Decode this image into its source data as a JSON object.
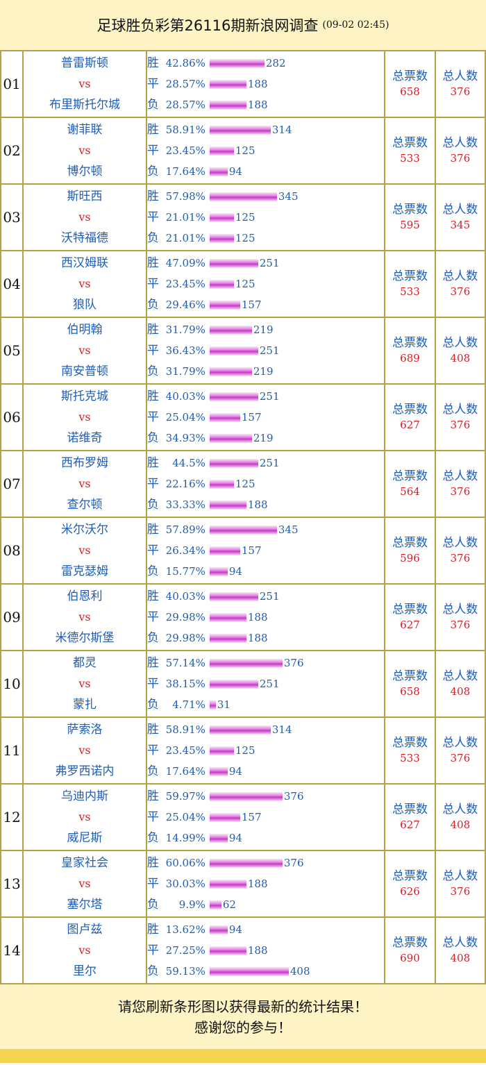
{
  "header": {
    "title": "足球胜负彩第26116期新浪网调查",
    "timestamp": "(09-02 02:45)"
  },
  "labels": {
    "vs": "vs",
    "win": "胜",
    "draw": "平",
    "lose": "负",
    "total_votes": "总票数",
    "total_people": "总人数"
  },
  "matches": [
    {
      "num": "01",
      "home": "普雷斯顿",
      "away": "布里斯托尔城",
      "win": {
        "pct": "42.86%",
        "count": 282
      },
      "draw": {
        "pct": "28.57%",
        "count": 188
      },
      "lose": {
        "pct": "28.57%",
        "count": 188
      },
      "total_votes": "658",
      "total_people": "376"
    },
    {
      "num": "02",
      "home": "谢菲联",
      "away": "博尔顿",
      "win": {
        "pct": "58.91%",
        "count": 314
      },
      "draw": {
        "pct": "23.45%",
        "count": 125
      },
      "lose": {
        "pct": "17.64%",
        "count": 94
      },
      "total_votes": "533",
      "total_people": "376"
    },
    {
      "num": "03",
      "home": "斯旺西",
      "away": "沃特福德",
      "win": {
        "pct": "57.98%",
        "count": 345
      },
      "draw": {
        "pct": "21.01%",
        "count": 125
      },
      "lose": {
        "pct": "21.01%",
        "count": 125
      },
      "total_votes": "595",
      "total_people": "345"
    },
    {
      "num": "04",
      "home": "西汉姆联",
      "away": "狼队",
      "win": {
        "pct": "47.09%",
        "count": 251
      },
      "draw": {
        "pct": "23.45%",
        "count": 125
      },
      "lose": {
        "pct": "29.46%",
        "count": 157
      },
      "total_votes": "533",
      "total_people": "376"
    },
    {
      "num": "05",
      "home": "伯明翰",
      "away": "南安普顿",
      "win": {
        "pct": "31.79%",
        "count": 219
      },
      "draw": {
        "pct": "36.43%",
        "count": 251
      },
      "lose": {
        "pct": "31.79%",
        "count": 219
      },
      "total_votes": "689",
      "total_people": "408"
    },
    {
      "num": "06",
      "home": "斯托克城",
      "away": "诺维奇",
      "win": {
        "pct": "40.03%",
        "count": 251
      },
      "draw": {
        "pct": "25.04%",
        "count": 157
      },
      "lose": {
        "pct": "34.93%",
        "count": 219
      },
      "total_votes": "627",
      "total_people": "376"
    },
    {
      "num": "07",
      "home": "西布罗姆",
      "away": "查尔顿",
      "win": {
        "pct": "44.5%",
        "count": 251
      },
      "draw": {
        "pct": "22.16%",
        "count": 125
      },
      "lose": {
        "pct": "33.33%",
        "count": 188
      },
      "total_votes": "564",
      "total_people": "376"
    },
    {
      "num": "08",
      "home": "米尔沃尔",
      "away": "雷克瑟姆",
      "win": {
        "pct": "57.89%",
        "count": 345
      },
      "draw": {
        "pct": "26.34%",
        "count": 157
      },
      "lose": {
        "pct": "15.77%",
        "count": 94
      },
      "total_votes": "596",
      "total_people": "376"
    },
    {
      "num": "09",
      "home": "伯恩利",
      "away": "米德尔斯堡",
      "win": {
        "pct": "40.03%",
        "count": 251
      },
      "draw": {
        "pct": "29.98%",
        "count": 188
      },
      "lose": {
        "pct": "29.98%",
        "count": 188
      },
      "total_votes": "627",
      "total_people": "376"
    },
    {
      "num": "10",
      "home": "都灵",
      "away": "蒙扎",
      "win": {
        "pct": "57.14%",
        "count": 376
      },
      "draw": {
        "pct": "38.15%",
        "count": 251
      },
      "lose": {
        "pct": "4.71%",
        "count": 31
      },
      "total_votes": "658",
      "total_people": "408"
    },
    {
      "num": "11",
      "home": "萨索洛",
      "away": "弗罗西诺内",
      "win": {
        "pct": "58.91%",
        "count": 314
      },
      "draw": {
        "pct": "23.45%",
        "count": 125
      },
      "lose": {
        "pct": "17.64%",
        "count": 94
      },
      "total_votes": "533",
      "total_people": "376"
    },
    {
      "num": "12",
      "home": "乌迪内斯",
      "away": "威尼斯",
      "win": {
        "pct": "59.97%",
        "count": 376
      },
      "draw": {
        "pct": "25.04%",
        "count": 157
      },
      "lose": {
        "pct": "14.99%",
        "count": 94
      },
      "total_votes": "627",
      "total_people": "408"
    },
    {
      "num": "13",
      "home": "皇家社会",
      "away": "塞尔塔",
      "win": {
        "pct": "60.06%",
        "count": 376
      },
      "draw": {
        "pct": "30.03%",
        "count": 188
      },
      "lose": {
        "pct": "9.9%",
        "count": 62
      },
      "total_votes": "626",
      "total_people": "376"
    },
    {
      "num": "14",
      "home": "图卢兹",
      "away": "里尔",
      "win": {
        "pct": "13.62%",
        "count": 94
      },
      "draw": {
        "pct": "27.25%",
        "count": 188
      },
      "lose": {
        "pct": "59.13%",
        "count": 408
      },
      "total_votes": "690",
      "total_people": "408"
    }
  ],
  "footer": {
    "line1": "请您刷新条形图以获得最新的统计结果！",
    "line2": "感谢您的参与！"
  },
  "colors": {
    "header_bg": "#fdf3c4",
    "border": "#b8a046",
    "team_blue": "#1e5db5",
    "accent_red": "#d81d22",
    "bar_magenta": "#c23ac3",
    "bottom_strip": "#f3d44e"
  }
}
